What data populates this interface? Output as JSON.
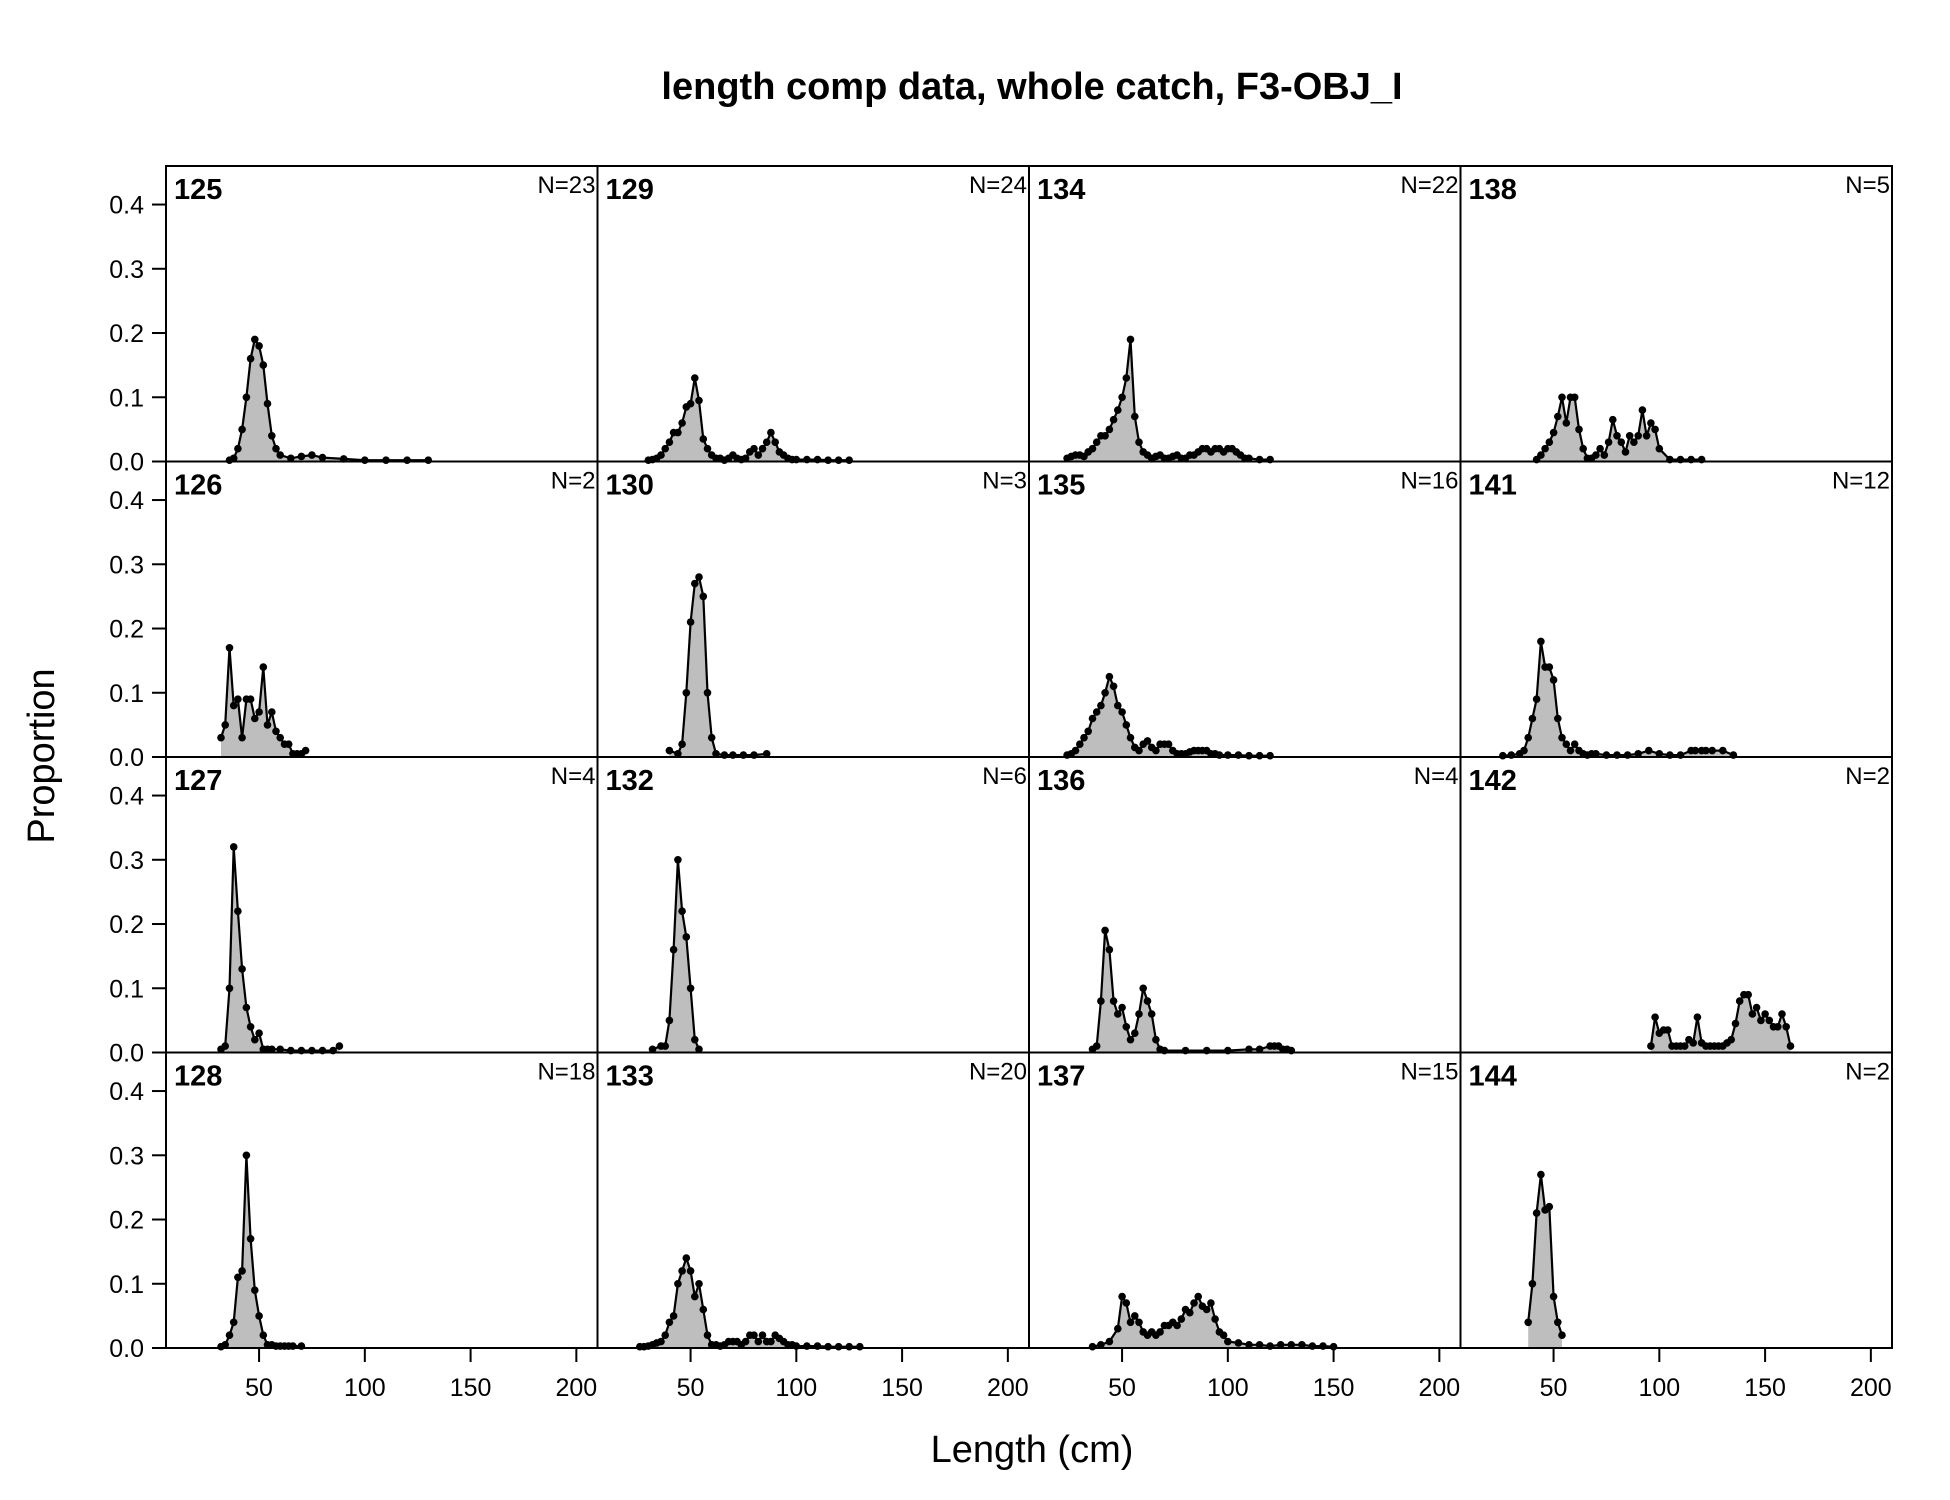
{
  "chart_data": {
    "type": "area",
    "title": "length comp data, whole catch, F3-OBJ_I",
    "xlabel": "Length (cm)",
    "ylabel": "Proportion",
    "xlim": [
      6,
      210
    ],
    "ylim": [
      0,
      0.46
    ],
    "xticks": [
      50,
      100,
      150,
      200
    ],
    "yticks": [
      0.0,
      0.1,
      0.2,
      0.3,
      0.4
    ],
    "yticklabels": [
      "0.0",
      "0.1",
      "0.2",
      "0.3",
      "0.4"
    ],
    "grid": false,
    "layout": {
      "rows": 4,
      "cols": 4,
      "order": "column-major"
    },
    "fill_color": "#bebebe",
    "line_color": "#000000",
    "panels": [
      {
        "label": "125",
        "n": "N=23",
        "x": [
          36,
          38,
          40,
          42,
          44,
          46,
          48,
          50,
          52,
          54,
          56,
          58,
          60,
          65,
          70,
          75,
          80,
          90,
          100,
          110,
          120,
          130
        ],
        "y": [
          0.002,
          0.005,
          0.02,
          0.05,
          0.1,
          0.16,
          0.19,
          0.18,
          0.15,
          0.09,
          0.04,
          0.02,
          0.01,
          0.005,
          0.008,
          0.01,
          0.006,
          0.004,
          0.002,
          0.002,
          0.002,
          0.002
        ]
      },
      {
        "label": "126",
        "n": "N=2",
        "x": [
          32,
          34,
          36,
          38,
          40,
          42,
          44,
          46,
          48,
          50,
          52,
          54,
          56,
          58,
          60,
          62,
          64,
          66,
          68,
          70,
          72
        ],
        "y": [
          0.03,
          0.05,
          0.17,
          0.08,
          0.09,
          0.03,
          0.09,
          0.09,
          0.06,
          0.07,
          0.14,
          0.05,
          0.07,
          0.04,
          0.03,
          0.02,
          0.02,
          0.005,
          0.005,
          0.005,
          0.01
        ]
      },
      {
        "label": "127",
        "n": "N=4",
        "x": [
          32,
          34,
          36,
          38,
          40,
          42,
          44,
          46,
          48,
          50,
          52,
          54,
          56,
          60,
          65,
          70,
          75,
          80,
          85,
          88
        ],
        "y": [
          0.005,
          0.01,
          0.1,
          0.32,
          0.22,
          0.13,
          0.07,
          0.04,
          0.02,
          0.03,
          0.005,
          0.005,
          0.005,
          0.005,
          0.003,
          0.003,
          0.003,
          0.003,
          0.003,
          0.01
        ]
      },
      {
        "label": "128",
        "n": "N=18",
        "x": [
          32,
          34,
          36,
          38,
          40,
          42,
          44,
          46,
          48,
          50,
          52,
          54,
          56,
          58,
          60,
          62,
          64,
          66,
          70
        ],
        "y": [
          0.002,
          0.005,
          0.02,
          0.04,
          0.11,
          0.12,
          0.3,
          0.17,
          0.09,
          0.05,
          0.02,
          0.005,
          0.005,
          0.003,
          0.003,
          0.003,
          0.003,
          0.003,
          0.003
        ]
      },
      {
        "label": "129",
        "n": "N=24",
        "x": [
          30,
          32,
          34,
          36,
          38,
          40,
          42,
          44,
          46,
          48,
          50,
          52,
          54,
          56,
          58,
          60,
          62,
          64,
          66,
          68,
          70,
          72,
          74,
          76,
          78,
          80,
          82,
          84,
          86,
          88,
          90,
          92,
          94,
          96,
          98,
          100,
          105,
          110,
          115,
          120,
          125
        ],
        "y": [
          0.002,
          0.003,
          0.005,
          0.01,
          0.02,
          0.03,
          0.045,
          0.045,
          0.06,
          0.085,
          0.09,
          0.13,
          0.095,
          0.035,
          0.02,
          0.01,
          0.005,
          0.005,
          0.002,
          0.005,
          0.01,
          0.005,
          0.003,
          0.005,
          0.015,
          0.02,
          0.01,
          0.02,
          0.03,
          0.045,
          0.03,
          0.015,
          0.01,
          0.005,
          0.003,
          0.003,
          0.003,
          0.003,
          0.002,
          0.002,
          0.002
        ]
      },
      {
        "label": "130",
        "n": "N=3",
        "x": [
          40,
          44,
          46,
          48,
          50,
          52,
          54,
          56,
          58,
          60,
          62,
          66,
          70,
          75,
          80,
          86
        ],
        "y": [
          0.01,
          0.005,
          0.02,
          0.1,
          0.21,
          0.27,
          0.28,
          0.25,
          0.1,
          0.03,
          0.005,
          0.003,
          0.003,
          0.003,
          0.003,
          0.005
        ]
      },
      {
        "label": "132",
        "n": "N=6",
        "x": [
          32,
          36,
          38,
          40,
          42,
          44,
          46,
          48,
          50,
          52,
          54
        ],
        "y": [
          0.005,
          0.01,
          0.01,
          0.05,
          0.16,
          0.3,
          0.22,
          0.18,
          0.1,
          0.02,
          0.005
        ]
      },
      {
        "label": "133",
        "n": "N=20",
        "x": [
          26,
          28,
          30,
          32,
          34,
          36,
          38,
          40,
          42,
          44,
          46,
          48,
          50,
          52,
          54,
          56,
          58,
          60,
          62,
          64,
          66,
          68,
          70,
          72,
          74,
          76,
          78,
          80,
          82,
          84,
          86,
          88,
          90,
          92,
          94,
          96,
          98,
          100,
          105,
          110,
          115,
          120,
          125,
          130
        ],
        "y": [
          0.002,
          0.002,
          0.003,
          0.005,
          0.008,
          0.01,
          0.02,
          0.04,
          0.05,
          0.1,
          0.12,
          0.14,
          0.12,
          0.08,
          0.1,
          0.06,
          0.02,
          0.005,
          0.005,
          0.003,
          0.005,
          0.01,
          0.01,
          0.01,
          0.005,
          0.01,
          0.02,
          0.02,
          0.01,
          0.02,
          0.01,
          0.01,
          0.02,
          0.015,
          0.01,
          0.005,
          0.005,
          0.003,
          0.003,
          0.003,
          0.002,
          0.002,
          0.002,
          0.002
        ]
      },
      {
        "label": "134",
        "n": "N=22",
        "x": [
          24,
          26,
          28,
          30,
          32,
          34,
          36,
          38,
          40,
          42,
          44,
          46,
          48,
          50,
          52,
          54,
          56,
          58,
          60,
          62,
          64,
          66,
          68,
          70,
          72,
          74,
          76,
          78,
          80,
          82,
          84,
          86,
          88,
          90,
          92,
          94,
          96,
          98,
          100,
          102,
          104,
          106,
          108,
          110,
          115,
          120
        ],
        "y": [
          0.005,
          0.008,
          0.01,
          0.01,
          0.008,
          0.015,
          0.02,
          0.03,
          0.04,
          0.04,
          0.05,
          0.065,
          0.08,
          0.1,
          0.13,
          0.19,
          0.07,
          0.03,
          0.015,
          0.01,
          0.005,
          0.008,
          0.01,
          0.005,
          0.005,
          0.008,
          0.01,
          0.005,
          0.005,
          0.01,
          0.01,
          0.015,
          0.02,
          0.02,
          0.015,
          0.02,
          0.02,
          0.015,
          0.02,
          0.02,
          0.015,
          0.01,
          0.005,
          0.005,
          0.003,
          0.003
        ]
      },
      {
        "label": "135",
        "n": "N=16",
        "x": [
          24,
          26,
          28,
          30,
          32,
          34,
          36,
          38,
          40,
          42,
          44,
          46,
          48,
          50,
          52,
          54,
          56,
          58,
          60,
          62,
          64,
          66,
          68,
          70,
          72,
          74,
          76,
          78,
          80,
          82,
          84,
          86,
          88,
          90,
          92,
          94,
          96,
          100,
          105,
          110,
          115,
          120
        ],
        "y": [
          0.003,
          0.005,
          0.01,
          0.02,
          0.03,
          0.04,
          0.06,
          0.07,
          0.08,
          0.1,
          0.125,
          0.11,
          0.08,
          0.07,
          0.05,
          0.03,
          0.015,
          0.01,
          0.02,
          0.025,
          0.015,
          0.01,
          0.02,
          0.02,
          0.02,
          0.01,
          0.005,
          0.005,
          0.005,
          0.008,
          0.01,
          0.01,
          0.01,
          0.01,
          0.005,
          0.005,
          0.003,
          0.003,
          0.003,
          0.002,
          0.002,
          0.002
        ]
      },
      {
        "label": "136",
        "n": "N=4",
        "x": [
          36,
          38,
          40,
          42,
          44,
          46,
          48,
          50,
          52,
          54,
          56,
          58,
          60,
          62,
          64,
          66,
          68,
          70,
          80,
          90,
          100,
          110,
          115,
          120,
          122,
          124,
          126,
          128,
          130
        ],
        "y": [
          0.005,
          0.01,
          0.08,
          0.19,
          0.16,
          0.08,
          0.06,
          0.07,
          0.04,
          0.02,
          0.03,
          0.06,
          0.1,
          0.08,
          0.06,
          0.02,
          0.005,
          0.003,
          0.003,
          0.003,
          0.003,
          0.005,
          0.005,
          0.01,
          0.01,
          0.01,
          0.005,
          0.005,
          0.003
        ]
      },
      {
        "label": "137",
        "n": "N=15",
        "x": [
          36,
          40,
          44,
          48,
          50,
          52,
          54,
          56,
          58,
          60,
          62,
          64,
          66,
          68,
          70,
          72,
          74,
          76,
          78,
          80,
          82,
          84,
          86,
          88,
          90,
          92,
          94,
          96,
          98,
          100,
          105,
          110,
          115,
          120,
          125,
          130,
          135,
          140,
          145,
          150
        ],
        "y": [
          0.002,
          0.005,
          0.01,
          0.03,
          0.08,
          0.07,
          0.04,
          0.05,
          0.04,
          0.025,
          0.02,
          0.025,
          0.02,
          0.025,
          0.035,
          0.035,
          0.04,
          0.035,
          0.045,
          0.06,
          0.055,
          0.07,
          0.08,
          0.065,
          0.06,
          0.07,
          0.045,
          0.025,
          0.02,
          0.01,
          0.008,
          0.005,
          0.005,
          0.003,
          0.005,
          0.005,
          0.005,
          0.003,
          0.003,
          0.002
        ]
      },
      {
        "label": "138",
        "n": "N=5",
        "x": [
          42,
          44,
          46,
          48,
          50,
          52,
          54,
          56,
          58,
          60,
          62,
          64,
          66,
          68,
          70,
          72,
          74,
          76,
          78,
          80,
          82,
          84,
          86,
          88,
          90,
          92,
          94,
          96,
          98,
          100,
          105,
          110,
          115,
          120
        ],
        "y": [
          0.003,
          0.01,
          0.02,
          0.03,
          0.045,
          0.07,
          0.1,
          0.06,
          0.1,
          0.1,
          0.05,
          0.02,
          0.005,
          0.005,
          0.01,
          0.02,
          0.01,
          0.03,
          0.065,
          0.04,
          0.03,
          0.015,
          0.04,
          0.03,
          0.04,
          0.08,
          0.04,
          0.06,
          0.05,
          0.02,
          0.003,
          0.003,
          0.003,
          0.003
        ]
      },
      {
        "label": "141",
        "n": "N=12",
        "x": [
          26,
          30,
          34,
          36,
          38,
          40,
          42,
          44,
          46,
          48,
          50,
          52,
          54,
          56,
          58,
          60,
          62,
          64,
          66,
          68,
          70,
          75,
          80,
          85,
          90,
          95,
          100,
          105,
          110,
          115,
          117,
          120,
          122,
          125,
          130,
          135
        ],
        "y": [
          0.002,
          0.003,
          0.005,
          0.01,
          0.03,
          0.06,
          0.09,
          0.18,
          0.14,
          0.14,
          0.12,
          0.06,
          0.03,
          0.02,
          0.01,
          0.02,
          0.01,
          0.005,
          0.003,
          0.005,
          0.005,
          0.003,
          0.003,
          0.003,
          0.005,
          0.01,
          0.005,
          0.003,
          0.003,
          0.01,
          0.01,
          0.01,
          0.01,
          0.01,
          0.01,
          0.003
        ]
      },
      {
        "label": "142",
        "n": "N=2",
        "x": [
          96,
          98,
          100,
          102,
          104,
          106,
          108,
          110,
          112,
          114,
          116,
          118,
          120,
          122,
          124,
          126,
          128,
          130,
          132,
          134,
          136,
          138,
          140,
          142,
          144,
          146,
          148,
          150,
          152,
          154,
          156,
          158,
          160,
          162
        ],
        "y": [
          0.01,
          0.055,
          0.03,
          0.035,
          0.035,
          0.01,
          0.01,
          0.01,
          0.01,
          0.02,
          0.015,
          0.055,
          0.015,
          0.01,
          0.01,
          0.01,
          0.01,
          0.01,
          0.015,
          0.02,
          0.045,
          0.08,
          0.09,
          0.09,
          0.06,
          0.07,
          0.05,
          0.06,
          0.05,
          0.04,
          0.04,
          0.06,
          0.04,
          0.01
        ]
      },
      {
        "label": "144",
        "n": "N=2",
        "x": [
          38,
          40,
          42,
          44,
          46,
          48,
          50,
          52,
          54
        ],
        "y": [
          0.04,
          0.1,
          0.21,
          0.27,
          0.215,
          0.22,
          0.08,
          0.04,
          0.02
        ]
      }
    ]
  }
}
